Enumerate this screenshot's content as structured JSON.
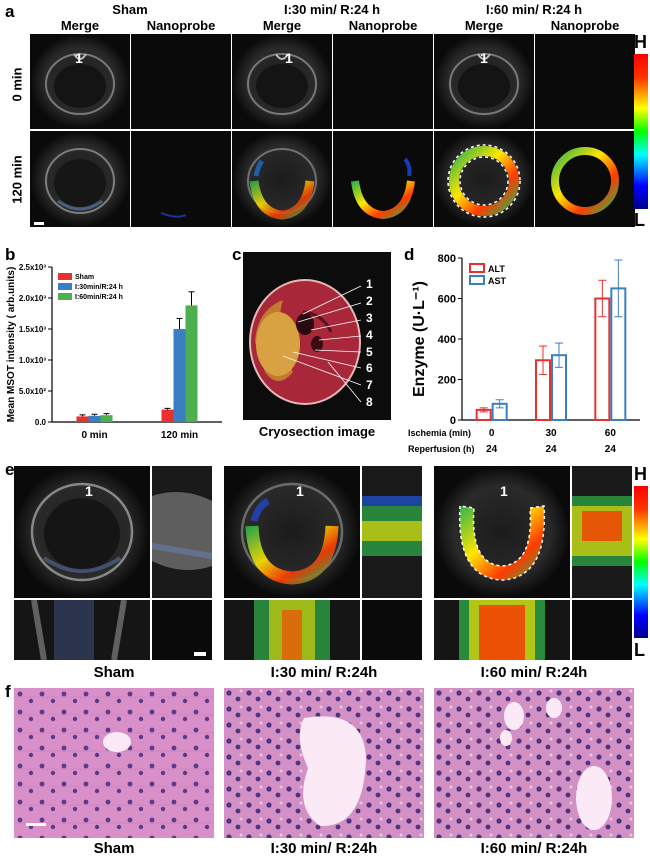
{
  "panel_a": {
    "label": "a",
    "groups": [
      "Sham",
      "I:30 min/ R:24 h",
      "I:60 min/ R:24 h"
    ],
    "columns": [
      "Merge",
      "Nanoprobe"
    ],
    "rows": [
      "0 min",
      "120 min"
    ],
    "landmark": "1",
    "colorbar_high": "H",
    "colorbar_low": "L"
  },
  "panel_b": {
    "label": "b",
    "chart_data": {
      "type": "bar",
      "ylabel": "Mean MSOT intensity ( arb.units)",
      "categories": [
        "0 min",
        "120 min"
      ],
      "yticks": [
        "0.0",
        "5.0x10²",
        "1.0x10³",
        "1.5x10³",
        "2.0x10³",
        "2.5x10³"
      ],
      "ylim": [
        0,
        2500
      ],
      "legend_position": "top-left",
      "series": [
        {
          "name": "Sham",
          "color": "#e8312f",
          "values": [
            90,
            200
          ],
          "err": [
            25,
            20
          ]
        },
        {
          "name": "I:30min/R:24 h",
          "color": "#3a7fc4",
          "values": [
            100,
            1500
          ],
          "err": [
            25,
            170
          ]
        },
        {
          "name": "I:60min/R:24 h",
          "color": "#4caf50",
          "values": [
            110,
            1880
          ],
          "err": [
            25,
            220
          ]
        }
      ]
    }
  },
  "panel_c": {
    "label": "c",
    "caption": "Cryosection image",
    "numbers": [
      "1",
      "2",
      "3",
      "4",
      "5",
      "6",
      "7",
      "8"
    ]
  },
  "panel_d": {
    "label": "d",
    "chart_data": {
      "type": "bar",
      "ylabel": "Enzyme (U·L⁻¹)",
      "categories": [
        "0|24",
        "30|24",
        "60|24"
      ],
      "row1_label": "Ischemia (min)",
      "row1_values": [
        "0",
        "30",
        "60"
      ],
      "row2_label": "Reperfusion (h)",
      "row2_values": [
        "24",
        "24",
        "24"
      ],
      "yticks": [
        "0",
        "200",
        "400",
        "600",
        "800"
      ],
      "ylim": [
        0,
        800
      ],
      "legend_position": "top-left",
      "series": [
        {
          "name": "ALT",
          "color": "#e8312f",
          "values": [
            50,
            295,
            600
          ],
          "err": [
            10,
            70,
            90
          ]
        },
        {
          "name": "AST",
          "color": "#3a7fc4",
          "values": [
            80,
            320,
            650
          ],
          "err": [
            20,
            60,
            140
          ]
        }
      ]
    }
  },
  "panel_e": {
    "label": "e",
    "groups": [
      "Sham",
      "I:30 min/ R:24h",
      "I:60 min/ R:24h"
    ],
    "landmark": "1",
    "colorbar_high": "H",
    "colorbar_low": "L"
  },
  "panel_f": {
    "label": "f",
    "groups": [
      "Sham",
      "I:30 min/ R:24h",
      "I:60 min/ R:24h"
    ]
  }
}
